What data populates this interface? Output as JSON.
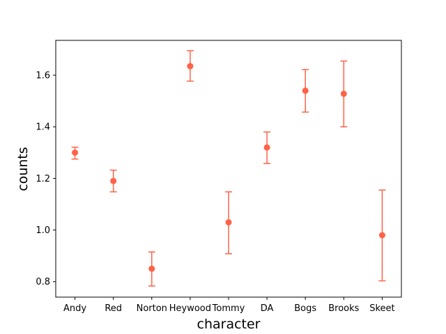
{
  "chart_data": {
    "type": "scatter",
    "title": "",
    "xlabel": "character",
    "ylabel": "counts",
    "categories": [
      "Andy",
      "Red",
      "Norton",
      "Heywood",
      "Tommy",
      "DA",
      "Bogs",
      "Brooks",
      "Skeet"
    ],
    "series": [
      {
        "values": [
          1.3,
          1.19,
          0.85,
          1.635,
          1.03,
          1.32,
          1.54,
          1.528,
          0.98
        ],
        "err_low": [
          1.275,
          1.148,
          0.783,
          1.577,
          0.908,
          1.258,
          1.457,
          1.4,
          0.803
        ],
        "err_high": [
          1.321,
          1.232,
          0.915,
          1.695,
          1.148,
          1.38,
          1.622,
          1.655,
          1.155
        ]
      }
    ],
    "ylim": [
      0.74,
      1.735
    ],
    "yticks": [
      "0.8",
      "1.0",
      "1.2",
      "1.4",
      "1.6"
    ],
    "grid": false,
    "color": "#ff6347"
  }
}
